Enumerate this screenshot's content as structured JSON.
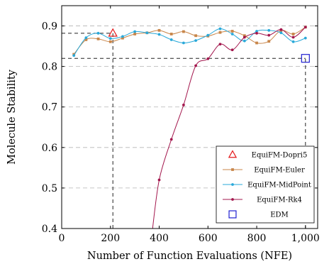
{
  "chart_data": {
    "type": "line",
    "xlabel": "Number of Function Evaluations (NFE)",
    "ylabel": "Molecule Stability",
    "xlim": [
      0,
      1050
    ],
    "ylim": [
      0.4,
      0.95
    ],
    "xticks": [
      0,
      200,
      400,
      600,
      800,
      1000
    ],
    "xtick_labels": [
      "0",
      "200",
      "400",
      "600",
      "800",
      "1,000"
    ],
    "yticks": [
      0.4,
      0.5,
      0.6,
      0.7,
      0.8,
      0.9
    ],
    "ytick_labels": [
      "0.4",
      "0.5",
      "0.6",
      "0.7",
      "0.8",
      "0.9"
    ],
    "grid": "horizontal dashed",
    "legend_position": "lower-right",
    "series": [
      {
        "name": "EquiFM-Dopri5",
        "color": "#e41a1c",
        "marker": "triangle-open",
        "line": false,
        "x": [
          210
        ],
        "y": [
          0.882
        ]
      },
      {
        "name": "EquiFM-Euler",
        "color": "#c8864a",
        "marker": "square-filled",
        "line": true,
        "x": [
          50,
          100,
          150,
          200,
          250,
          300,
          350,
          400,
          450,
          500,
          550,
          600,
          650,
          700,
          750,
          800,
          850,
          900,
          950,
          1000
        ],
        "y": [
          0.83,
          0.866,
          0.868,
          0.861,
          0.87,
          0.88,
          0.883,
          0.889,
          0.88,
          0.886,
          0.876,
          0.875,
          0.884,
          0.887,
          0.876,
          0.858,
          0.862,
          0.889,
          0.88,
          0.897
        ]
      },
      {
        "name": "EquiFM-MidPoint",
        "color": "#2aa9d9",
        "marker": "circle-filled",
        "line": true,
        "x": [
          50,
          100,
          150,
          200,
          250,
          300,
          350,
          400,
          450,
          500,
          550,
          600,
          650,
          700,
          750,
          800,
          850,
          900,
          950,
          1000
        ],
        "y": [
          0.827,
          0.871,
          0.882,
          0.869,
          0.874,
          0.886,
          0.883,
          0.879,
          0.866,
          0.858,
          0.864,
          0.877,
          0.893,
          0.88,
          0.863,
          0.887,
          0.889,
          0.883,
          0.861,
          0.87
        ]
      },
      {
        "name": "EquiFM-Rk4",
        "color": "#a3174d",
        "marker": "circle-filled",
        "line": true,
        "x": [
          370,
          400,
          450,
          500,
          550,
          600,
          650,
          700,
          750,
          800,
          850,
          900,
          950,
          1000
        ],
        "y": [
          0.385,
          0.52,
          0.62,
          0.705,
          0.802,
          0.819,
          0.855,
          0.841,
          0.872,
          0.882,
          0.877,
          0.891,
          0.872,
          0.897
        ]
      },
      {
        "name": "EDM",
        "color": "#1f1fd1",
        "marker": "square-open",
        "line": false,
        "x": [
          1000
        ],
        "y": [
          0.82
        ]
      }
    ],
    "reference_lines": [
      {
        "type": "horizontal",
        "y": 0.882,
        "x_from": 0,
        "x_to": 210
      },
      {
        "type": "vertical",
        "x": 210,
        "y_from": 0.4,
        "y_to": 0.882
      },
      {
        "type": "horizontal",
        "y": 0.82,
        "x_from": 0,
        "x_to": 1000
      },
      {
        "type": "vertical",
        "x": 1000,
        "y_from": 0.4,
        "y_to": 0.82
      }
    ]
  }
}
